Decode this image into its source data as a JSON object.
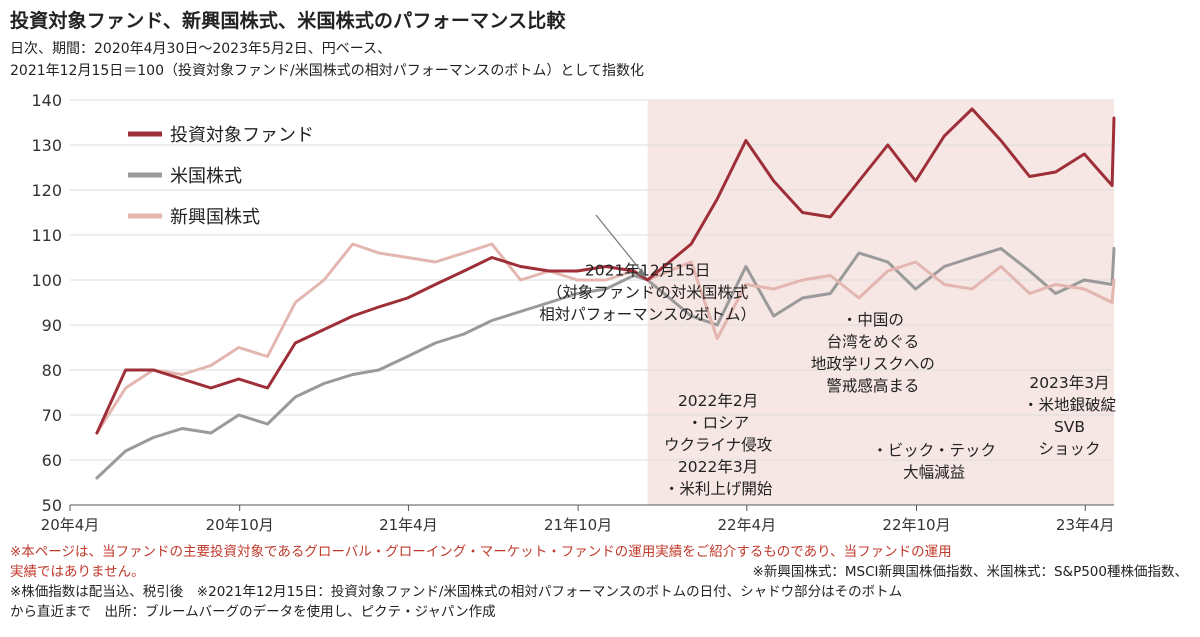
{
  "header": {
    "title": "投資対象ファンド、新興国株式、米国株式のパフォーマンス比較",
    "subtitle_line1": "日次、期間：2020年4月30日～2023年5月2日、円ベース、",
    "subtitle_line2": "2021年12月15日＝100（投資対象ファンド/米国株式の相対パフォーマンスのボトム）として指数化"
  },
  "chart_data": {
    "type": "line",
    "x_tick_labels": [
      "20年4月",
      "20年10月",
      "21年4月",
      "21年10月",
      "22年4月",
      "22年10月",
      "23年4月"
    ],
    "ylim": [
      50,
      140
    ],
    "y_ticks": [
      50,
      60,
      70,
      80,
      90,
      100,
      110,
      120,
      130,
      140
    ],
    "x": [
      "2020-04-30",
      "2020-05-31",
      "2020-06-30",
      "2020-07-31",
      "2020-08-31",
      "2020-09-30",
      "2020-10-31",
      "2020-11-30",
      "2020-12-31",
      "2021-01-31",
      "2021-02-28",
      "2021-03-31",
      "2021-04-30",
      "2021-05-31",
      "2021-06-30",
      "2021-07-31",
      "2021-08-31",
      "2021-09-30",
      "2021-10-31",
      "2021-11-30",
      "2021-12-15",
      "2022-01-31",
      "2022-02-28",
      "2022-03-31",
      "2022-04-30",
      "2022-05-31",
      "2022-06-30",
      "2022-07-31",
      "2022-08-31",
      "2022-09-30",
      "2022-10-31",
      "2022-11-30",
      "2022-12-31",
      "2023-01-31",
      "2023-02-28",
      "2023-03-31",
      "2023-04-30",
      "2023-05-02"
    ],
    "series": [
      {
        "name": "投資対象ファンド",
        "color": "#9e2f38",
        "values": [
          66,
          80,
          80,
          78,
          76,
          78,
          76,
          86,
          89,
          92,
          94,
          96,
          99,
          102,
          105,
          103,
          102,
          102,
          103,
          102,
          100,
          108,
          118,
          131,
          122,
          115,
          114,
          122,
          130,
          122,
          132,
          138,
          131,
          123,
          124,
          128,
          121,
          136
        ]
      },
      {
        "name": "米国株式",
        "color": "#9a9a9a",
        "values": [
          56,
          62,
          65,
          67,
          66,
          70,
          68,
          74,
          77,
          79,
          80,
          83,
          86,
          88,
          91,
          93,
          95,
          97,
          98,
          101,
          100,
          92,
          90,
          103,
          92,
          96,
          97,
          106,
          104,
          98,
          103,
          105,
          107,
          102,
          97,
          100,
          99,
          107
        ]
      },
      {
        "name": "新興国株式",
        "color": "#e3b6b0",
        "values": [
          66,
          76,
          80,
          79,
          81,
          85,
          83,
          95,
          100,
          108,
          106,
          105,
          104,
          106,
          108,
          100,
          102,
          100,
          100,
          102,
          100,
          104,
          87,
          99,
          98,
          100,
          101,
          96,
          102,
          104,
          99,
          98,
          103,
          97,
          99,
          98,
          95,
          100
        ]
      }
    ],
    "shaded_region": {
      "from": "2021-12-15",
      "to": "2023-05-02",
      "color": "#f6e6e4"
    },
    "legend": {
      "placement": "top-left"
    },
    "annotations": [
      {
        "x": "2021-12-15",
        "y": 101,
        "lines": [
          "2021年12月15日",
          "（対象ファンドの対米国株式",
          "相対パフォーマンスのボトム）"
        ]
      },
      {
        "x": "2022-03-01",
        "y": 72,
        "lines": [
          "2022年2月",
          "・ロシア",
          "ウクライナ侵攻",
          "2022年3月",
          "・米利上げ開始"
        ]
      },
      {
        "x": "2022-08-15",
        "y": 90,
        "lines": [
          "・中国の",
          "台湾をめぐる",
          "地政学リスクへの",
          "警戒感高まる"
        ]
      },
      {
        "x": "2022-10-20",
        "y": 61,
        "lines": [
          "・ビック・テック",
          "大幅減益"
        ]
      },
      {
        "x": "2023-03-15",
        "y": 76,
        "lines": [
          "2023年3月",
          "・米地銀破綻",
          "SVB",
          "ショック"
        ]
      }
    ]
  },
  "footer": {
    "note1": "※本ページは、当ファンドの主要投資対象であるグローバル・グローイング・マーケット・ファンドの運用実績をご紹介するものであり、当ファンドの運用",
    "note2": "実績ではありません。",
    "note3": "※新興国株式：MSCI新興国株価指数、米国株式：S&P500種株価指数、",
    "note4": "※株価指数は配当込、税引後　※2021年12月15日：投資対象ファンド/米国株式の相対パフォーマンスのボトムの日付、シャドウ部分はそのボトム",
    "note5": "から直近まで　出所：ブルームバーグのデータを使用し、ピクテ・ジャパン作成"
  }
}
